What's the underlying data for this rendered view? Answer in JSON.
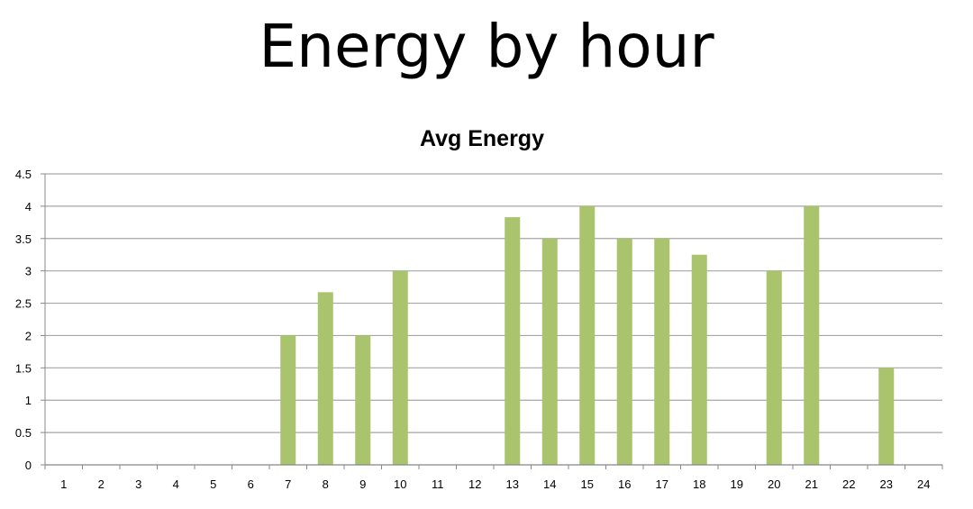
{
  "page": {
    "title": "Energy by hour"
  },
  "chart_data": {
    "type": "bar",
    "title": "Avg Energy",
    "xlabel": "",
    "ylabel": "",
    "categories": [
      "1",
      "2",
      "3",
      "4",
      "5",
      "6",
      "7",
      "8",
      "9",
      "10",
      "11",
      "12",
      "13",
      "14",
      "15",
      "16",
      "17",
      "18",
      "19",
      "20",
      "21",
      "22",
      "23",
      "24"
    ],
    "values": [
      0,
      0,
      0,
      0,
      0,
      0,
      2,
      2.67,
      2,
      3,
      0,
      0,
      3.83,
      3.5,
      4,
      3.5,
      3.5,
      3.25,
      0,
      3,
      4,
      0,
      1.5,
      0
    ],
    "ylim": [
      0,
      4.5
    ],
    "yticks": [
      "0",
      "0.5",
      "1",
      "1.5",
      "2",
      "2.5",
      "3",
      "3.5",
      "4",
      "4.5"
    ],
    "grid": true,
    "legend": "none",
    "bar_color": "#a9c46c",
    "grid_color": "#a6a6a6"
  }
}
